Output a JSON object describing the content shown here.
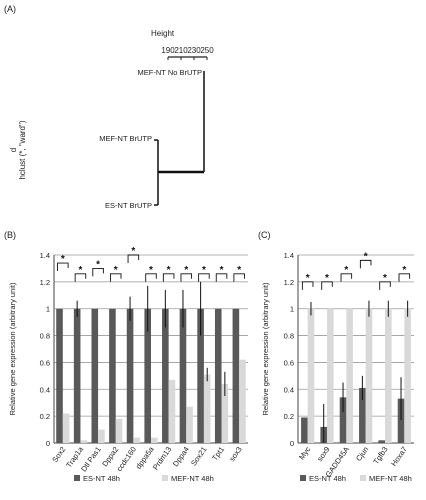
{
  "panels": {
    "a": "(A)",
    "b": "(B)",
    "c": "(C)"
  },
  "dendrogram": {
    "height_label": "Height",
    "ticks": [
      "190",
      "210",
      "230",
      "250"
    ],
    "ylabel_line1": "d",
    "ylabel_line2": "hclust (*, \"ward\")",
    "leaves": [
      "MEF-NT No BrUTP",
      "MEF-NT BrUTP",
      "ES-NT BrUTP"
    ]
  },
  "chart_data": [
    {
      "type": "bar",
      "panel": "(B)",
      "categories": [
        "Sox2",
        "Trap1a",
        "Dtl Pas1",
        "Dppa2",
        "ccdc160",
        "dppa5a",
        "Prdm13",
        "Dppa4",
        "Sox21",
        "Tpt1",
        "sox3"
      ],
      "series": [
        {
          "name": "ES-NT 48h",
          "color": "#595959",
          "values": [
            1.0,
            1.0,
            1.0,
            1.0,
            1.0,
            1.0,
            1.0,
            1.0,
            1.0,
            1.0,
            1.0
          ],
          "errors": [
            0,
            0.06,
            0,
            0,
            0.09,
            0.17,
            0.14,
            0.14,
            0.2,
            0,
            0
          ]
        },
        {
          "name": "MEF-NT 48h",
          "color": "#d9d9d9",
          "values": [
            0.22,
            0.02,
            0.1,
            0.18,
            0.04,
            0.04,
            0.47,
            0.27,
            0.51,
            0.44,
            0.62
          ],
          "errors": [
            0,
            0,
            0,
            0,
            0,
            0,
            0,
            0,
            0.05,
            0.09,
            0
          ]
        }
      ],
      "ylabel": "Relative gene expression (arbitrary unit)",
      "ylim": [
        0,
        1.4
      ],
      "yticks": [
        "0",
        "0.2",
        "0.4",
        "0.6",
        "0.8",
        "1",
        "1.2",
        "1.4"
      ],
      "grid": true,
      "legend": "bottom",
      "significance": "*"
    },
    {
      "type": "bar",
      "panel": "(C)",
      "categories": [
        "Myc",
        "sox9",
        "GADD45A",
        "Cjun",
        "Tgfb3",
        "Hoxa7"
      ],
      "series": [
        {
          "name": "ES-NT 48h",
          "color": "#595959",
          "values": [
            0.19,
            0.12,
            0.34,
            0.41,
            0.02,
            0.33
          ],
          "errors": [
            0,
            0.17,
            0.11,
            0.09,
            0,
            0.16
          ]
        },
        {
          "name": "MEF-NT 48h",
          "color": "#d9d9d9",
          "values": [
            1.0,
            1.0,
            1.0,
            1.0,
            1.0,
            1.0
          ],
          "errors": [
            0.05,
            0,
            0,
            0.06,
            0.06,
            0.06
          ]
        }
      ],
      "ylabel": "Relative gene expression (arbitrary unit)",
      "ylim": [
        0,
        1.4
      ],
      "yticks": [
        "0",
        "0.2",
        "0.4",
        "0.6",
        "0.8",
        "1",
        "1.2",
        "1.4"
      ],
      "grid": true,
      "legend": "bottom",
      "significance": "*"
    }
  ]
}
